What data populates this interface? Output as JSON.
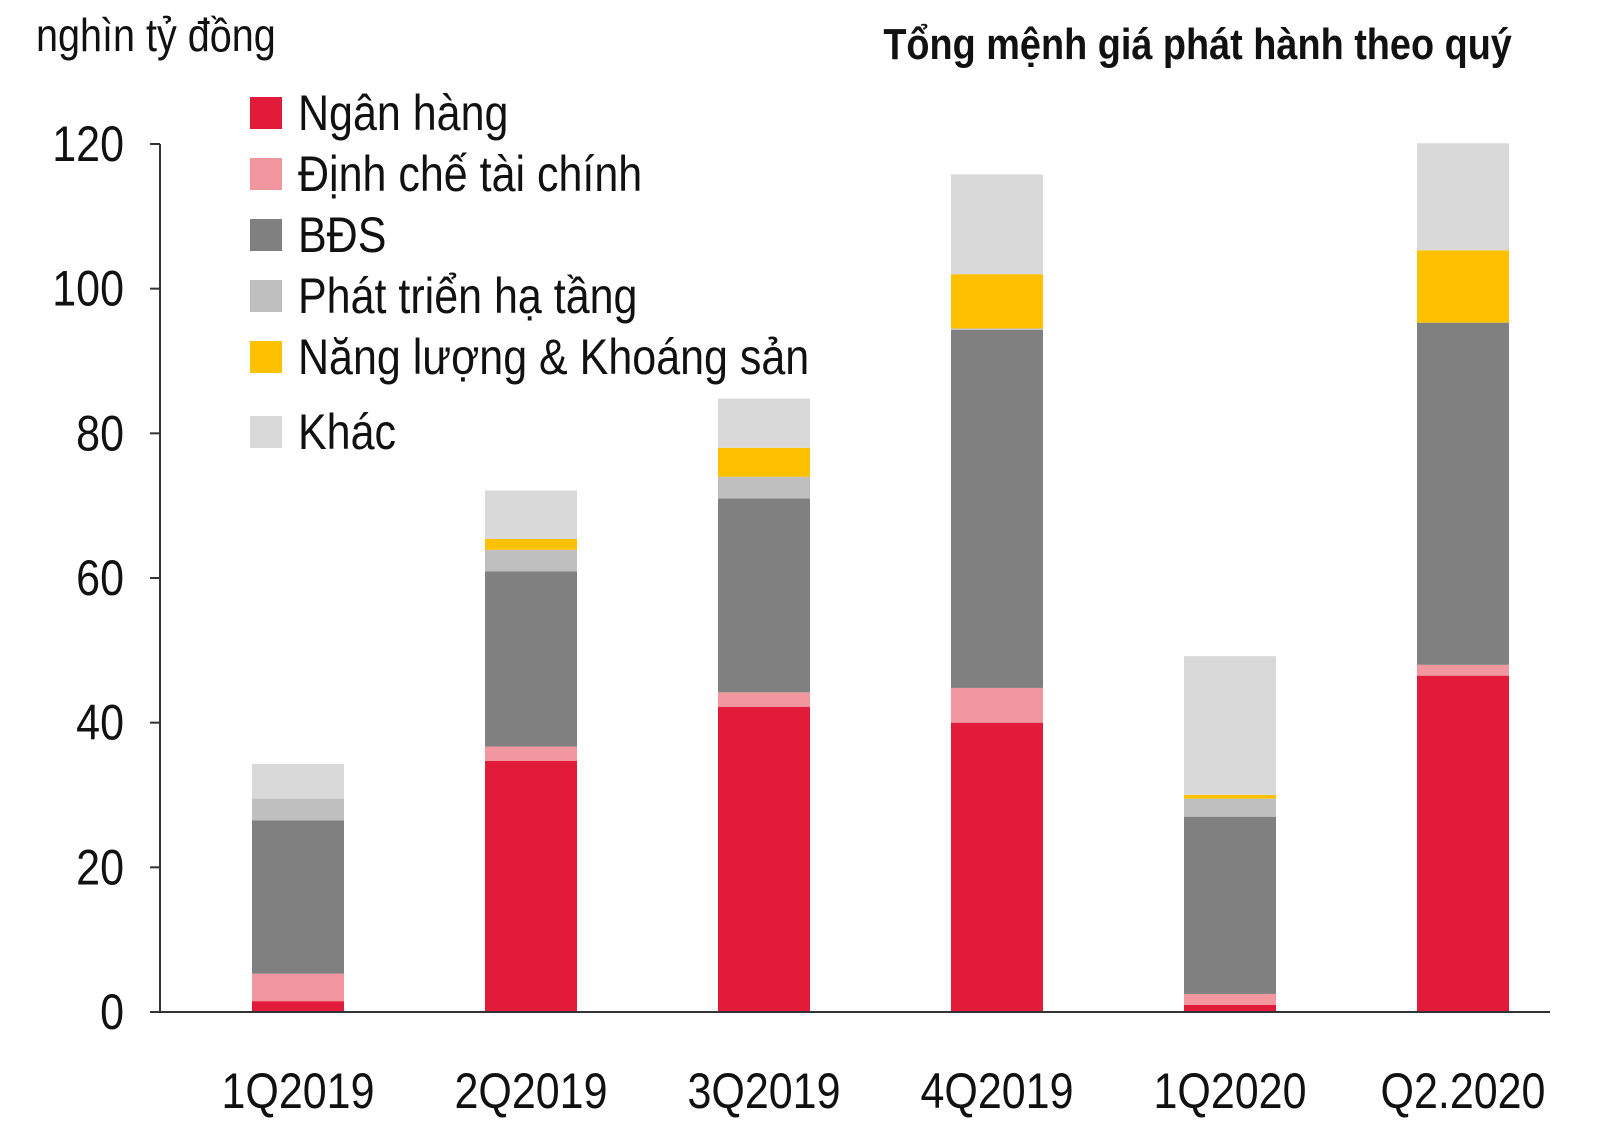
{
  "chart_data": {
    "type": "bar",
    "stacked": true,
    "title": "Tổng mệnh giá phát hành theo quý",
    "ylabel": "nghìn tỷ đồng",
    "xlabel": "",
    "ylim": [
      0,
      120
    ],
    "yticks": [
      "0",
      "20",
      "40",
      "60",
      "80",
      "100",
      "120"
    ],
    "grid": false,
    "legend_position": "top-left",
    "categories": [
      "1Q2019",
      "2Q2019",
      "3Q2019",
      "4Q2019",
      "1Q2020",
      "Q2.2020"
    ],
    "series": [
      {
        "name": "Ngân hàng",
        "color": "#e31b3a",
        "values": [
          1.5,
          34.7,
          42.2,
          40.0,
          1.0,
          46.5
        ]
      },
      {
        "name": "Định chế tài chính",
        "color": "#f2969f",
        "values": [
          3.8,
          2.0,
          2.0,
          4.8,
          1.5,
          1.5
        ]
      },
      {
        "name": "BĐS",
        "color": "#808080",
        "values": [
          21.2,
          24.2,
          26.8,
          49.5,
          24.5,
          47.3
        ]
      },
      {
        "name": "Phát triển hạ tầng",
        "color": "#bfbfbf",
        "values": [
          3.0,
          3.0,
          3.0,
          0.2,
          2.5,
          0.0
        ]
      },
      {
        "name": "Năng lượng & Khoáng sản",
        "color": "#ffc000",
        "values": [
          0.0,
          1.5,
          4.0,
          7.5,
          0.5,
          10.0
        ]
      },
      {
        "name": "Khác",
        "color": "#d9d9d9",
        "values": [
          4.8,
          6.7,
          6.8,
          13.8,
          19.2,
          14.8
        ]
      }
    ]
  }
}
